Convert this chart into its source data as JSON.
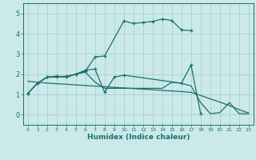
{
  "bg_color": "#cce9e9",
  "grid_color": "#aad4d4",
  "line_color": "#1a7070",
  "xlabel": "Humidex (Indice chaleur)",
  "xlim": [
    -0.5,
    23.5
  ],
  "ylim": [
    -0.5,
    5.5
  ],
  "xticks": [
    0,
    1,
    2,
    3,
    4,
    5,
    6,
    7,
    8,
    9,
    10,
    11,
    12,
    13,
    14,
    15,
    16,
    17,
    18,
    19,
    20,
    21,
    22,
    23
  ],
  "yticks": [
    0,
    1,
    2,
    3,
    4,
    5
  ],
  "series": [
    {
      "x": [
        0,
        1,
        2,
        3,
        4,
        5,
        6,
        7,
        8,
        10,
        11,
        12,
        13,
        14,
        15,
        16,
        17
      ],
      "y": [
        1.05,
        1.55,
        1.85,
        1.85,
        1.9,
        2.0,
        2.15,
        2.85,
        2.9,
        4.62,
        4.5,
        4.55,
        4.6,
        4.72,
        4.65,
        4.18,
        4.15
      ],
      "has_markers": true
    },
    {
      "x": [
        0,
        1,
        2,
        3,
        4,
        5,
        6,
        7,
        8,
        9,
        10,
        16,
        17,
        18
      ],
      "y": [
        1.05,
        1.55,
        1.85,
        1.9,
        1.85,
        2.0,
        2.2,
        2.25,
        1.1,
        1.85,
        1.95,
        1.55,
        2.45,
        0.05
      ],
      "has_markers": true
    },
    {
      "x": [
        0,
        1,
        2,
        3,
        4,
        5,
        6,
        7,
        8,
        9,
        10,
        11,
        12,
        13,
        14,
        15,
        16,
        17,
        18,
        19,
        20,
        21,
        22,
        23
      ],
      "y": [
        1.05,
        1.55,
        1.85,
        1.9,
        1.85,
        2.0,
        2.1,
        1.6,
        1.3,
        1.3,
        1.3,
        1.3,
        1.3,
        1.3,
        1.3,
        1.6,
        1.55,
        1.42,
        0.6,
        0.05,
        0.1,
        0.6,
        0.05,
        0.05
      ],
      "has_markers": false
    },
    {
      "x": [
        0,
        1,
        2,
        3,
        4,
        5,
        6,
        7,
        8,
        9,
        10,
        11,
        12,
        13,
        14,
        15,
        16,
        17,
        18,
        19,
        20,
        21,
        22,
        23
      ],
      "y": [
        1.65,
        1.6,
        1.56,
        1.53,
        1.5,
        1.47,
        1.44,
        1.41,
        1.38,
        1.35,
        1.32,
        1.29,
        1.26,
        1.23,
        1.2,
        1.17,
        1.14,
        1.1,
        0.95,
        0.78,
        0.62,
        0.45,
        0.25,
        0.08
      ],
      "has_markers": false
    }
  ]
}
